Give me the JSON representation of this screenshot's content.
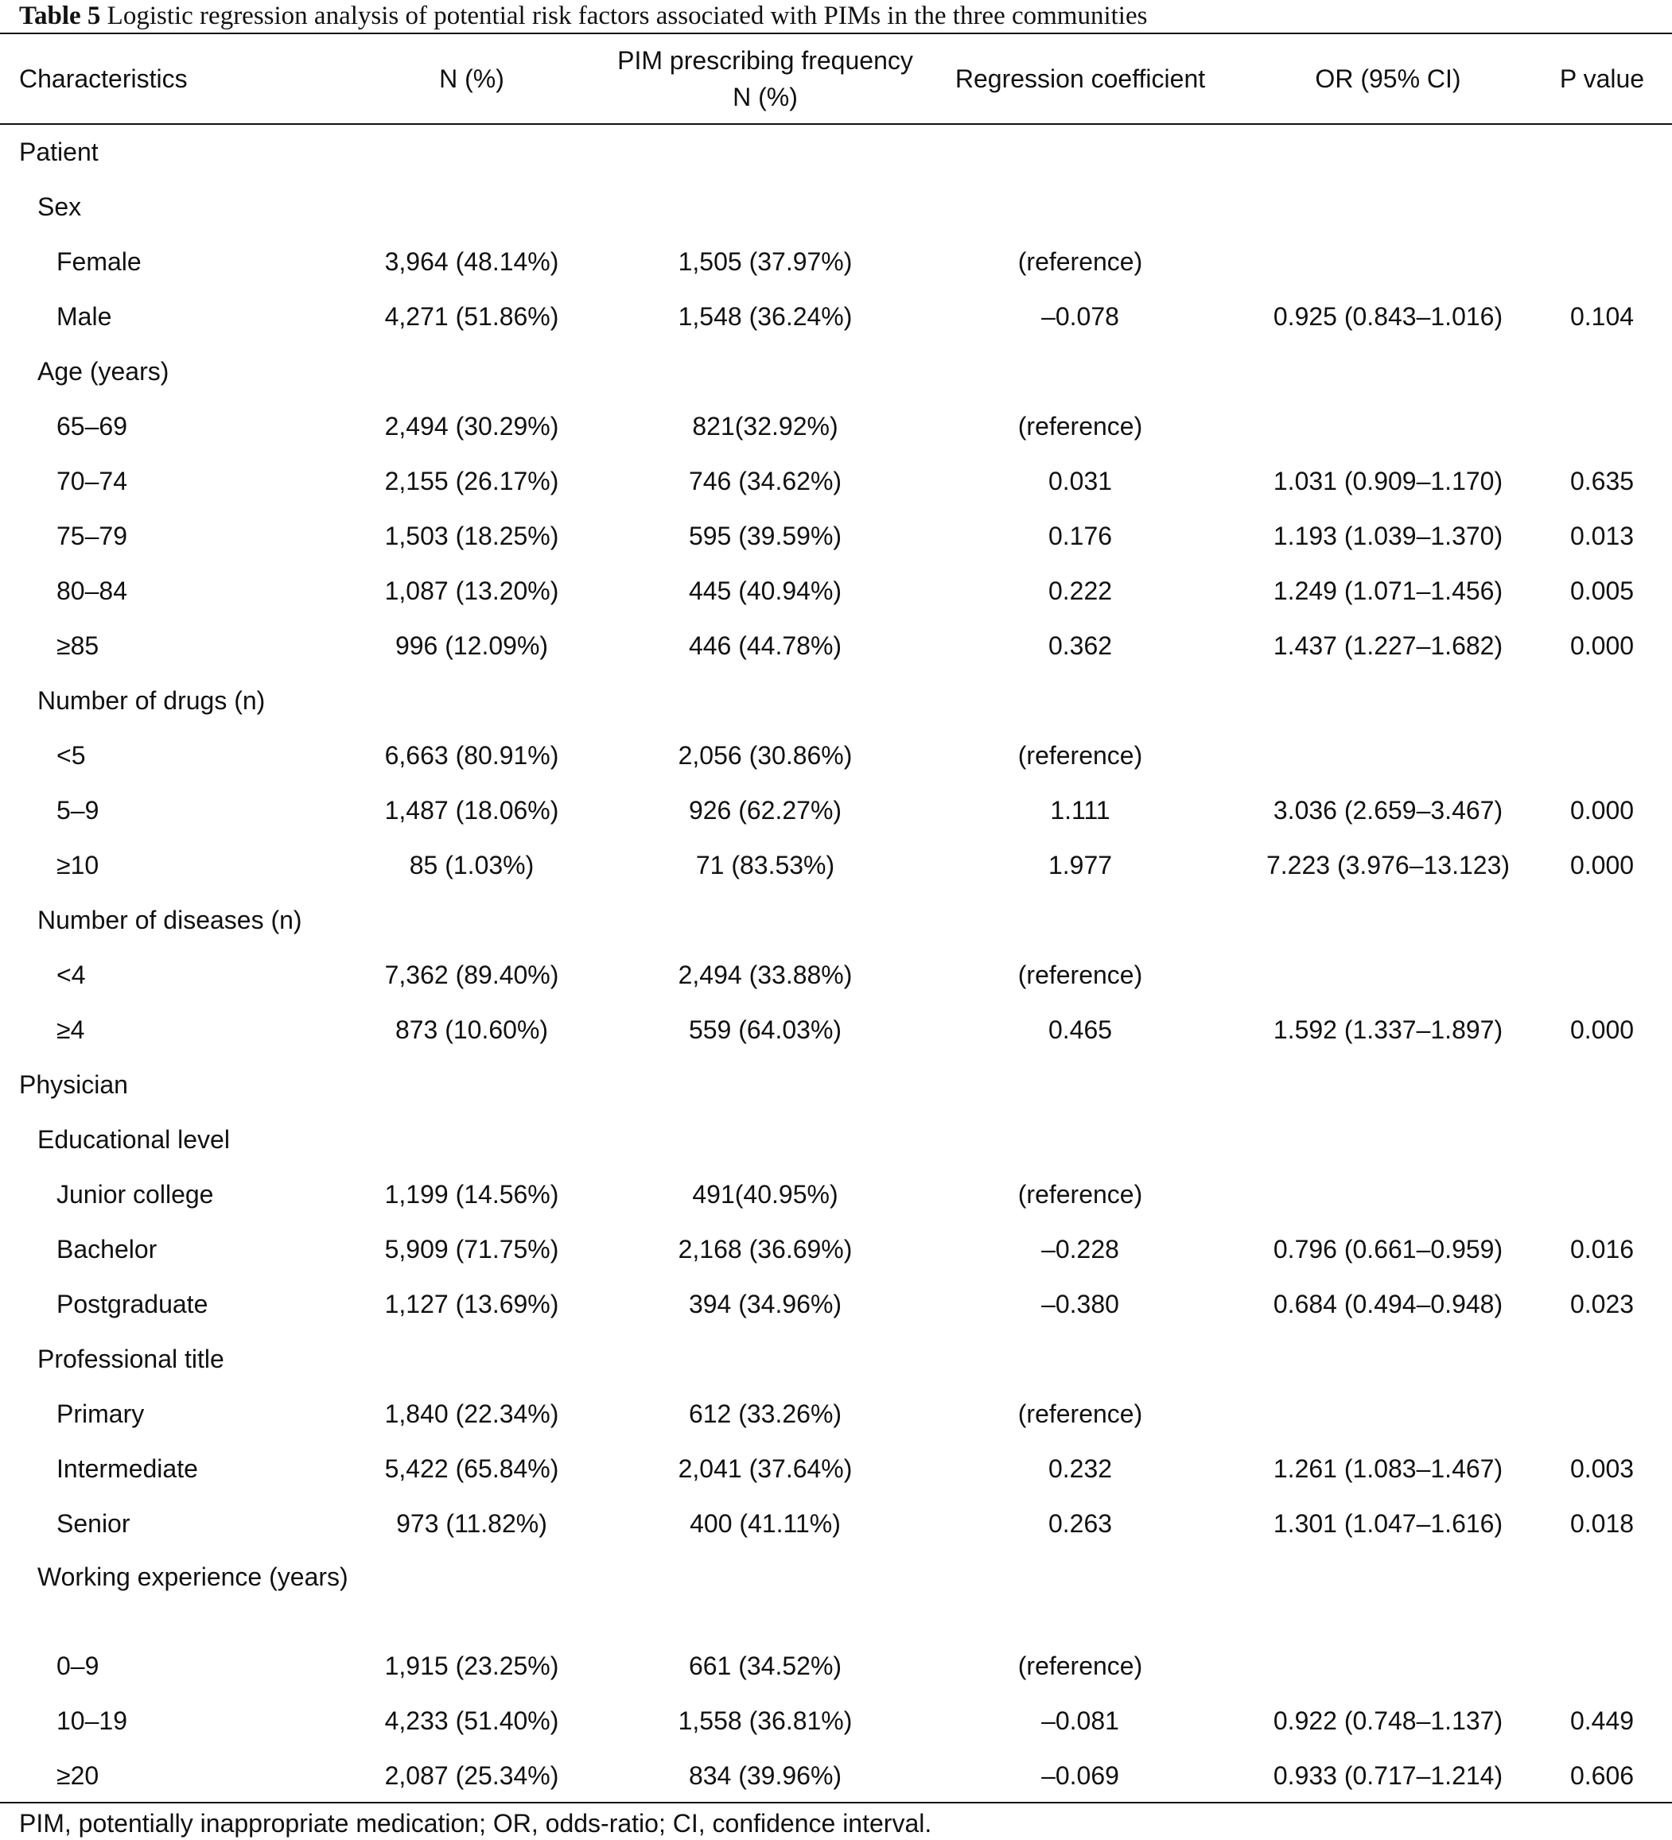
{
  "caption": {
    "label": "Table 5",
    "text": "Logistic regression analysis of potential risk factors associated with PIMs in the three communities"
  },
  "headers": {
    "characteristics": "Characteristics",
    "n_pct": "N (%)",
    "pim_freq_line1": "PIM prescribing frequency",
    "pim_freq_line2": "N (%)",
    "reg_coef": "Regression coefficient",
    "or_ci": "OR (95% CI)",
    "p_value": "P value"
  },
  "rows": [
    {
      "label": "Patient",
      "level": 0
    },
    {
      "label": "Sex",
      "level": 1
    },
    {
      "label": "Female",
      "level": 2,
      "n": "3,964 (48.14%)",
      "pim": "1,505 (37.97%)",
      "coef": "(reference)",
      "or": "",
      "p": ""
    },
    {
      "label": "Male",
      "level": 2,
      "n": "4,271 (51.86%)",
      "pim": "1,548 (36.24%)",
      "coef": "–0.078",
      "or": "0.925 (0.843–1.016)",
      "p": "0.104"
    },
    {
      "label": "Age (years)",
      "level": 1
    },
    {
      "label": "65–69",
      "level": 2,
      "n": "2,494 (30.29%)",
      "pim": "821(32.92%)",
      "coef": "(reference)",
      "or": "",
      "p": ""
    },
    {
      "label": "70–74",
      "level": 2,
      "n": "2,155 (26.17%)",
      "pim": "746 (34.62%)",
      "coef": "0.031",
      "or": "1.031 (0.909–1.170)",
      "p": "0.635"
    },
    {
      "label": "75–79",
      "level": 2,
      "n": "1,503 (18.25%)",
      "pim": "595 (39.59%)",
      "coef": "0.176",
      "or": "1.193 (1.039–1.370)",
      "p": "0.013"
    },
    {
      "label": "80–84",
      "level": 2,
      "n": "1,087 (13.20%)",
      "pim": "445 (40.94%)",
      "coef": "0.222",
      "or": "1.249 (1.071–1.456)",
      "p": "0.005"
    },
    {
      "label": "≥85",
      "level": 2,
      "n": "996 (12.09%)",
      "pim": "446 (44.78%)",
      "coef": "0.362",
      "or": "1.437 (1.227–1.682)",
      "p": "0.000"
    },
    {
      "label": "Number of drugs (n)",
      "level": 1
    },
    {
      "label": "<5",
      "level": 2,
      "n": "6,663 (80.91%)",
      "pim": "2,056 (30.86%)",
      "coef": "(reference)",
      "or": "",
      "p": ""
    },
    {
      "label": "5–9",
      "level": 2,
      "n": "1,487 (18.06%)",
      "pim": "926 (62.27%)",
      "coef": "1.111",
      "or": "3.036 (2.659–3.467)",
      "p": "0.000"
    },
    {
      "label": "≥10",
      "level": 2,
      "n": "85 (1.03%)",
      "pim": "71 (83.53%)",
      "coef": "1.977",
      "or": "7.223 (3.976–13.123)",
      "p": "0.000"
    },
    {
      "label": "Number of diseases (n)",
      "level": 1
    },
    {
      "label": "<4",
      "level": 2,
      "n": "7,362 (89.40%)",
      "pim": "2,494 (33.88%)",
      "coef": "(reference)",
      "or": "",
      "p": ""
    },
    {
      "label": "≥4",
      "level": 2,
      "n": "873 (10.60%)",
      "pim": "559 (64.03%)",
      "coef": "0.465",
      "or": "1.592 (1.337–1.897)",
      "p": "0.000"
    },
    {
      "label": "Physician",
      "level": 0
    },
    {
      "label": "Educational level",
      "level": 1
    },
    {
      "label": "Junior college",
      "level": 2,
      "n": "1,199 (14.56%)",
      "pim": "491(40.95%)",
      "coef": "(reference)",
      "or": "",
      "p": ""
    },
    {
      "label": "Bachelor",
      "level": 2,
      "n": "5,909 (71.75%)",
      "pim": "2,168 (36.69%)",
      "coef": "–0.228",
      "or": "0.796 (0.661–0.959)",
      "p": "0.016"
    },
    {
      "label": "Postgraduate",
      "level": 2,
      "n": "1,127 (13.69%)",
      "pim": "394 (34.96%)",
      "coef": "–0.380",
      "or": "0.684 (0.494–0.948)",
      "p": "0.023"
    },
    {
      "label": "Professional title",
      "level": 1
    },
    {
      "label": "Primary",
      "level": 2,
      "n": "1,840 (22.34%)",
      "pim": "612 (33.26%)",
      "coef": "(reference)",
      "or": "",
      "p": ""
    },
    {
      "label": "Intermediate",
      "level": 2,
      "n": "5,422 (65.84%)",
      "pim": "2,041 (37.64%)",
      "coef": "0.232",
      "or": "1.261 (1.083–1.467)",
      "p": "0.003"
    },
    {
      "label": "Senior",
      "level": 2,
      "n": "973 (11.82%)",
      "pim": "400 (41.11%)",
      "coef": "0.263",
      "or": "1.301 (1.047–1.616)",
      "p": "0.018"
    },
    {
      "label": "Working experience (years)",
      "level": 1,
      "tall": true
    },
    {
      "label": "0–9",
      "level": 2,
      "n": "1,915 (23.25%)",
      "pim": "661 (34.52%)",
      "coef": "(reference)",
      "or": "",
      "p": ""
    },
    {
      "label": "10–19",
      "level": 2,
      "n": "4,233 (51.40%)",
      "pim": "1,558 (36.81%)",
      "coef": "–0.081",
      "or": "0.922 (0.748–1.137)",
      "p": "0.449"
    },
    {
      "label": "≥20",
      "level": 2,
      "n": "2,087 (25.34%)",
      "pim": "834 (39.96%)",
      "coef": "–0.069",
      "or": "0.933 (0.717–1.214)",
      "p": "0.606"
    }
  ],
  "footnote": "PIM, potentially inappropriate medication; OR, odds-ratio; CI, confidence interval."
}
